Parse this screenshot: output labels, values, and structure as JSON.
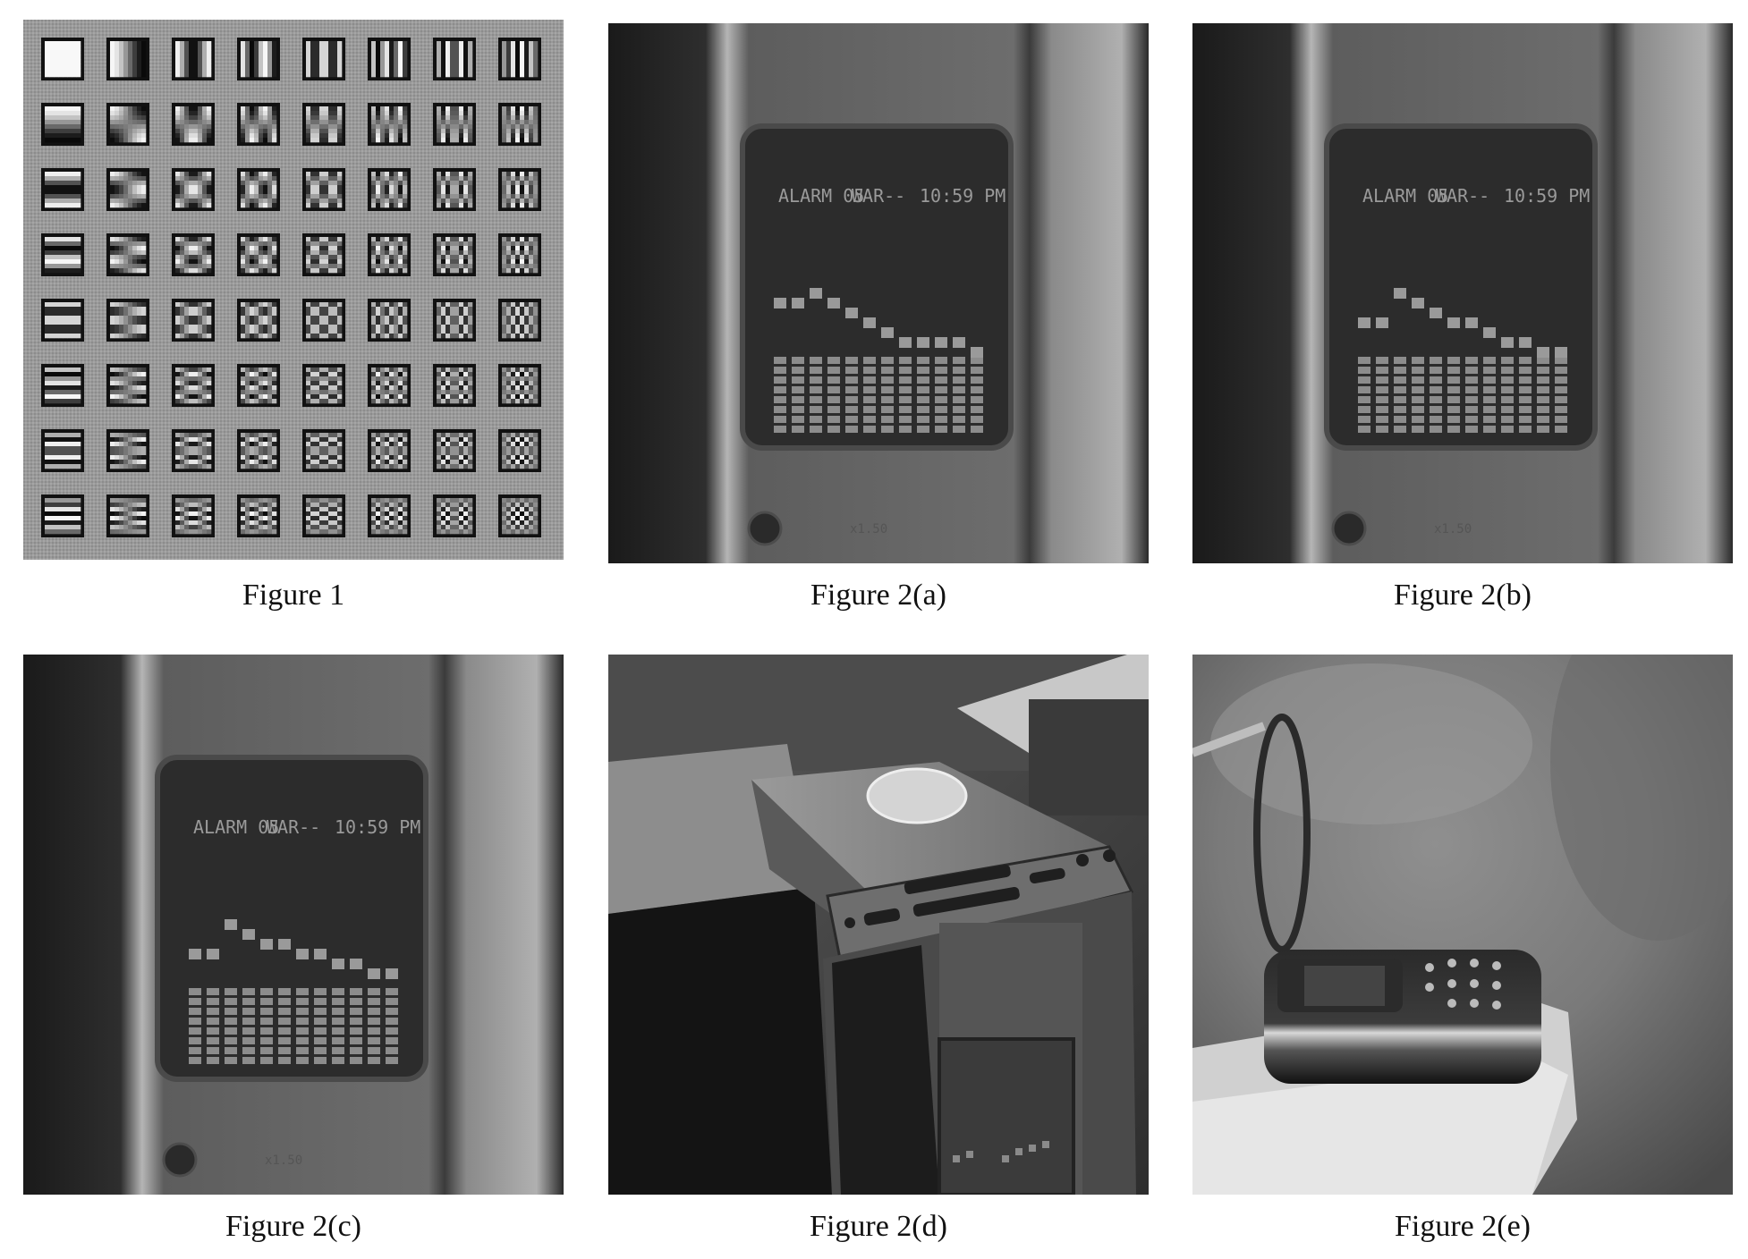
{
  "figures": {
    "fig1": {
      "caption": "Figure 1",
      "content": "8x8 DCT basis function patterns"
    },
    "fig2a": {
      "caption": "Figure 2(a)",
      "lcd_text": [
        "ALARM 05",
        "WAR--",
        "10:59 PM"
      ]
    },
    "fig2b": {
      "caption": "Figure 2(b)",
      "lcd_text": [
        "ALARM 05",
        "WAR--",
        "10:59 PM"
      ]
    },
    "fig2c": {
      "caption": "Figure 2(c)",
      "lcd_text": [
        "ALARM 05",
        "WAR--",
        "10:59 PM"
      ]
    },
    "fig2d": {
      "caption": "Figure 2(d)",
      "content": "stereo device on table"
    },
    "fig2e": {
      "caption": "Figure 2(e)",
      "content": "mobile phone on book"
    }
  }
}
